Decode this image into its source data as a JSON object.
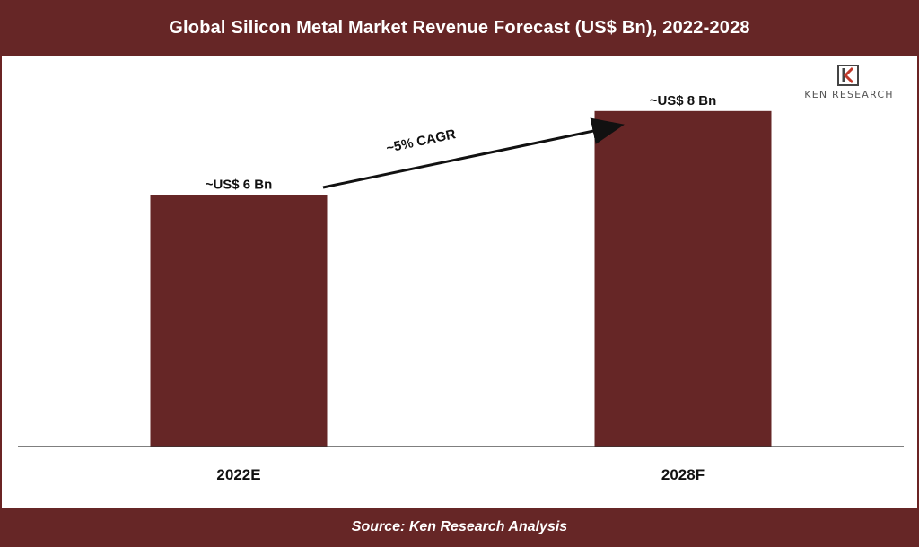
{
  "title": "Global Silicon Metal Market Revenue Forecast (US$ Bn), 2022-2028",
  "source": "Source: Ken Research Analysis",
  "logo": {
    "text": "KEN RESEARCH",
    "icon": "ken-research-k-logo"
  },
  "colors": {
    "bar": "#662626",
    "header": "#662626",
    "axis": "#333333"
  },
  "chart_data": {
    "type": "bar",
    "categories": [
      "2022E",
      "2028F"
    ],
    "values": [
      6,
      8
    ],
    "data_labels": [
      "~US$ 6 Bn",
      "~US$ 8 Bn"
    ],
    "title": "Global Silicon Metal Market Revenue Forecast (US$ Bn), 2022-2028",
    "xlabel": "",
    "ylabel": "",
    "ylim": [
      0,
      9.3
    ],
    "grid": false,
    "annotations": [
      {
        "text": "~5% CAGR",
        "type": "arrow",
        "from": "2022E",
        "to": "2028F"
      }
    ]
  }
}
